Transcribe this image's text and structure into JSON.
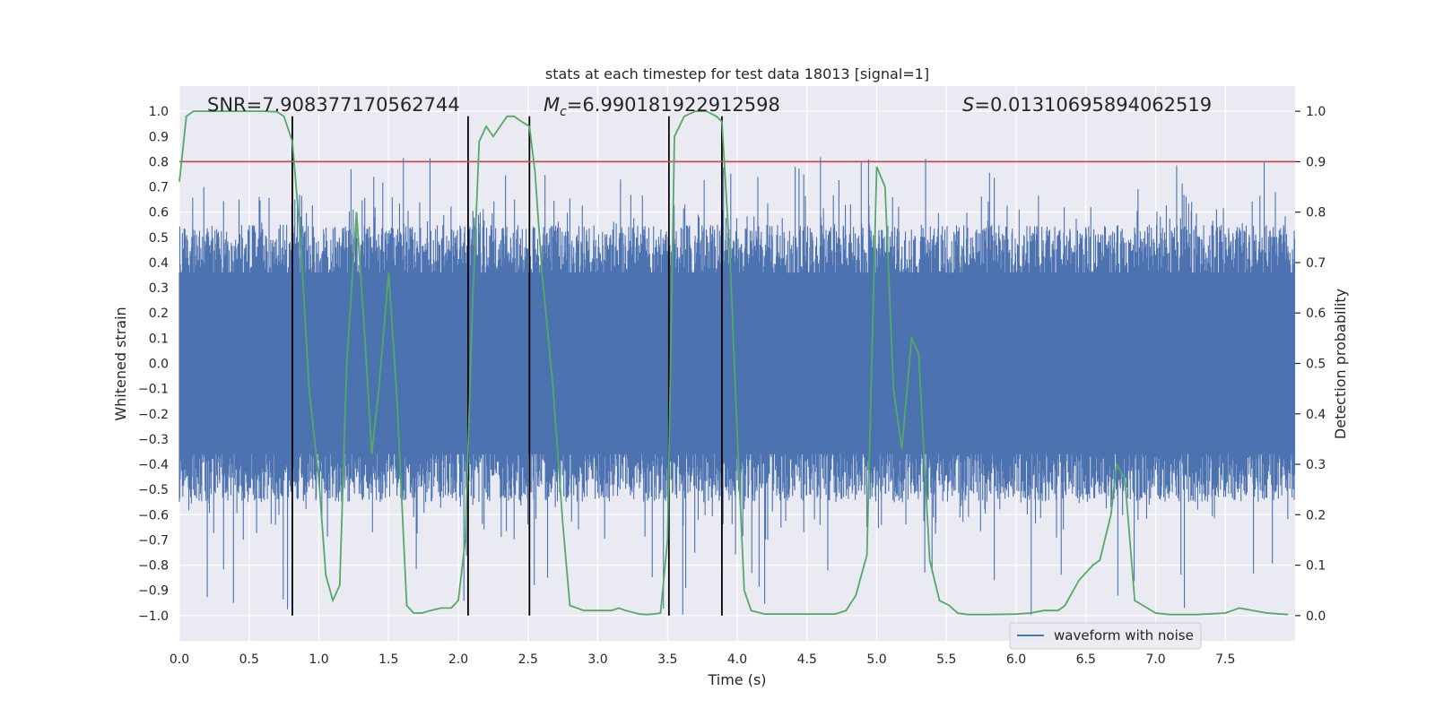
{
  "chart_data": {
    "type": "line",
    "title": "stats at each timestep for test data 18013 [signal=1]",
    "xlabel": "Time (s)",
    "ylabel": "Whitened strain",
    "y2label": "Detection probability",
    "xlim": [
      0.0,
      8.0
    ],
    "ylim": [
      -1.1,
      1.1
    ],
    "y2lim": [
      -0.05,
      1.05
    ],
    "xticks": [
      0.0,
      0.5,
      1.0,
      1.5,
      2.0,
      2.5,
      3.0,
      3.5,
      4.0,
      4.5,
      5.0,
      5.5,
      6.0,
      6.5,
      7.0,
      7.5
    ],
    "xtick_labels": [
      "0.0",
      "0.5",
      "1.0",
      "1.5",
      "2.0",
      "2.5",
      "3.0",
      "3.5",
      "4.0",
      "4.5",
      "5.0",
      "5.5",
      "6.0",
      "6.5",
      "7.0",
      "7.5"
    ],
    "yticks": [
      1.0,
      0.9,
      0.8,
      0.7,
      0.6,
      0.5,
      0.4,
      0.3,
      0.2,
      0.1,
      0.0,
      -0.1,
      -0.2,
      -0.3,
      -0.4,
      -0.5,
      -0.6,
      -0.7,
      -0.8,
      -0.9,
      -1.0
    ],
    "ytick_labels": [
      "1.0",
      "0.9",
      "0.8",
      "0.7",
      "0.6",
      "0.5",
      "0.4",
      "0.3",
      "0.2",
      "0.1",
      "0.0",
      "−0.1",
      "−0.2",
      "−0.3",
      "−0.4",
      "−0.5",
      "−0.6",
      "−0.7",
      "−0.8",
      "−0.9",
      "−1.0"
    ],
    "y2ticks": [
      1.0,
      0.9,
      0.8,
      0.7,
      0.6,
      0.5,
      0.4,
      0.3,
      0.2,
      0.1,
      0.0
    ],
    "y2tick_labels": [
      "1.0",
      "0.9",
      "0.8",
      "0.7",
      "0.6",
      "0.5",
      "0.4",
      "0.3",
      "0.2",
      "0.1",
      "0.0"
    ],
    "annotations": {
      "snr": "SNR=7.908377170562744",
      "mc_symbol": "M",
      "mc_sub": "c",
      "mc_value": "=6.990181922912598",
      "s_symbol": "S",
      "s_value": "=0.01310695894062519"
    },
    "threshold": {
      "value": 0.9,
      "axis": "y2",
      "color": "#c44e52"
    },
    "vertical_lines": {
      "x": [
        0.81,
        2.07,
        2.51,
        3.51,
        3.89
      ],
      "ymin": -1.0,
      "ymax": 0.98,
      "color": "#000000"
    },
    "series": [
      {
        "name": "waveform with noise",
        "axis": "y",
        "color": "#4c72b0",
        "note": "dense noise-like strain samples, approx. ±0.4 band with spikes up to ~0.85 and down to ~−1.0"
      },
      {
        "name": "detection probability",
        "axis": "y2",
        "color": "#55a868",
        "x": [
          0.0,
          0.05,
          0.1,
          0.2,
          0.3,
          0.4,
          0.5,
          0.6,
          0.7,
          0.75,
          0.81,
          0.87,
          0.93,
          1.0,
          1.05,
          1.1,
          1.15,
          1.2,
          1.27,
          1.33,
          1.38,
          1.43,
          1.5,
          1.56,
          1.63,
          1.68,
          1.74,
          1.8,
          1.88,
          1.95,
          2.0,
          2.05,
          2.1,
          2.15,
          2.2,
          2.25,
          2.3,
          2.35,
          2.4,
          2.45,
          2.51,
          2.55,
          2.6,
          2.68,
          2.75,
          2.8,
          2.9,
          3.0,
          3.1,
          3.15,
          3.2,
          3.3,
          3.35,
          3.4,
          3.45,
          3.5,
          3.55,
          3.62,
          3.7,
          3.78,
          3.85,
          3.89,
          3.95,
          4.0,
          4.05,
          4.1,
          4.2,
          4.3,
          4.5,
          4.7,
          4.78,
          4.85,
          4.93,
          5.0,
          5.06,
          5.12,
          5.18,
          5.25,
          5.3,
          5.38,
          5.45,
          5.52,
          5.58,
          5.65,
          5.8,
          6.0,
          6.1,
          6.2,
          6.3,
          6.35,
          6.45,
          6.55,
          6.6,
          6.68,
          6.72,
          6.78,
          6.85,
          7.0,
          7.1,
          7.3,
          7.5,
          7.55,
          7.6,
          7.7,
          7.8,
          7.95
        ],
        "values": [
          0.86,
          0.99,
          1.0,
          1.0,
          1.0,
          1.0,
          1.0,
          1.0,
          0.999,
          0.99,
          0.94,
          0.74,
          0.45,
          0.27,
          0.08,
          0.03,
          0.06,
          0.5,
          0.8,
          0.55,
          0.32,
          0.45,
          0.68,
          0.43,
          0.02,
          0.005,
          0.005,
          0.01,
          0.015,
          0.015,
          0.03,
          0.15,
          0.6,
          0.94,
          0.97,
          0.95,
          0.97,
          0.99,
          0.99,
          0.98,
          0.97,
          0.88,
          0.68,
          0.45,
          0.18,
          0.02,
          0.01,
          0.01,
          0.01,
          0.015,
          0.01,
          0.003,
          0.002,
          0.003,
          0.005,
          0.15,
          0.95,
          0.99,
          1.0,
          1.0,
          0.99,
          0.98,
          0.7,
          0.36,
          0.05,
          0.01,
          0.003,
          0.003,
          0.003,
          0.003,
          0.01,
          0.04,
          0.12,
          0.89,
          0.85,
          0.45,
          0.33,
          0.55,
          0.52,
          0.11,
          0.03,
          0.02,
          0.005,
          0.002,
          0.002,
          0.003,
          0.005,
          0.01,
          0.01,
          0.02,
          0.07,
          0.1,
          0.11,
          0.2,
          0.3,
          0.27,
          0.03,
          0.005,
          0.002,
          0.002,
          0.005,
          0.01,
          0.015,
          0.01,
          0.005,
          0.002
        ]
      }
    ],
    "legend": {
      "position": "lower-right",
      "entries": [
        "waveform with noise"
      ]
    }
  }
}
